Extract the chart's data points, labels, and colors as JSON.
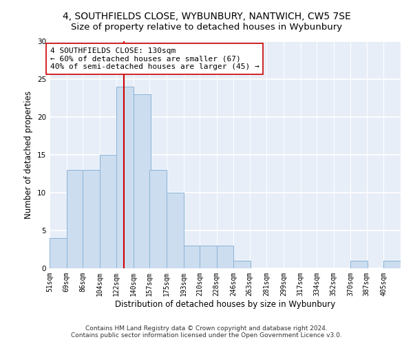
{
  "title": "4, SOUTHFIELDS CLOSE, WYBUNBURY, NANTWICH, CW5 7SE",
  "subtitle": "Size of property relative to detached houses in Wybunbury",
  "xlabel": "Distribution of detached houses by size in Wybunbury",
  "ylabel": "Number of detached properties",
  "bar_color": "#ccddef",
  "bar_edge_color": "#8ab4d8",
  "annotation_line_color": "#cc0000",
  "annotation_box_edge_color": "#cc0000",
  "annotation_text": "4 SOUTHFIELDS CLOSE: 130sqm\n← 60% of detached houses are smaller (67)\n40% of semi-detached houses are larger (45) →",
  "property_size": 130,
  "bins": [
    51,
    69,
    86,
    104,
    122,
    140,
    157,
    175,
    193,
    210,
    228,
    246,
    263,
    281,
    299,
    317,
    334,
    352,
    370,
    387,
    405
  ],
  "counts": [
    4,
    13,
    13,
    15,
    24,
    23,
    13,
    10,
    3,
    3,
    3,
    1,
    0,
    0,
    0,
    0,
    0,
    0,
    1,
    0,
    1
  ],
  "ylim": [
    0,
    30
  ],
  "yticks": [
    0,
    5,
    10,
    15,
    20,
    25,
    30
  ],
  "background_color": "#e8eef8",
  "footer": "Contains HM Land Registry data © Crown copyright and database right 2024.\nContains public sector information licensed under the Open Government Licence v3.0.",
  "title_fontsize": 10,
  "subtitle_fontsize": 9.5,
  "tick_label_fontsize": 7,
  "ylabel_fontsize": 8.5,
  "xlabel_fontsize": 8.5,
  "annotation_fontsize": 8,
  "footer_fontsize": 6.5
}
